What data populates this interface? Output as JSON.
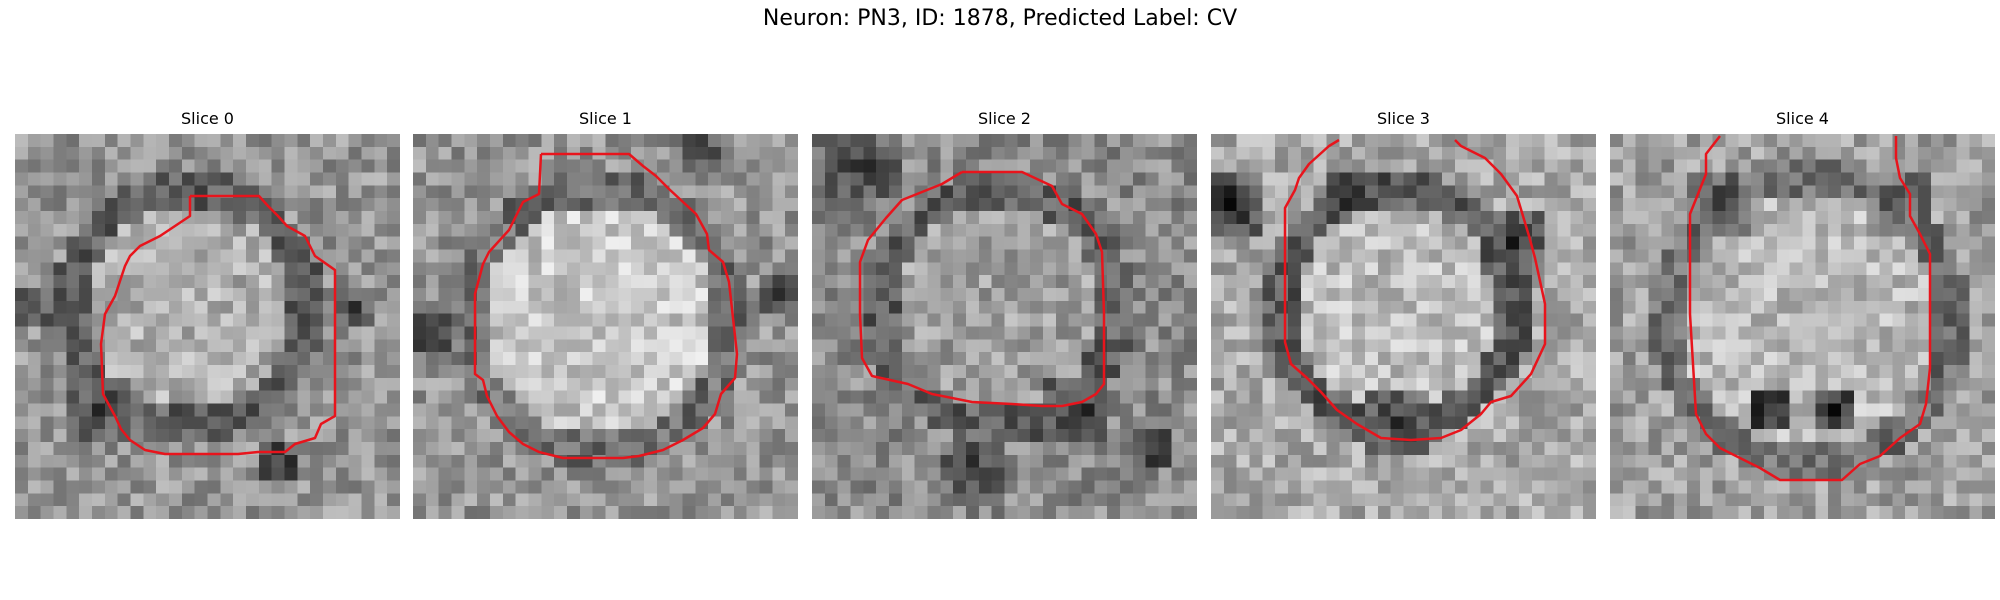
{
  "figure": {
    "title": "Neuron: PN3, ID: 1878, Predicted Label: CV",
    "contour_color": "#e8141c",
    "colormap": "grayscale",
    "panels": [
      {
        "title": "Slice 0"
      },
      {
        "title": "Slice 1"
      },
      {
        "title": "Slice 2"
      },
      {
        "title": "Slice 3"
      },
      {
        "title": "Slice 4"
      }
    ]
  }
}
